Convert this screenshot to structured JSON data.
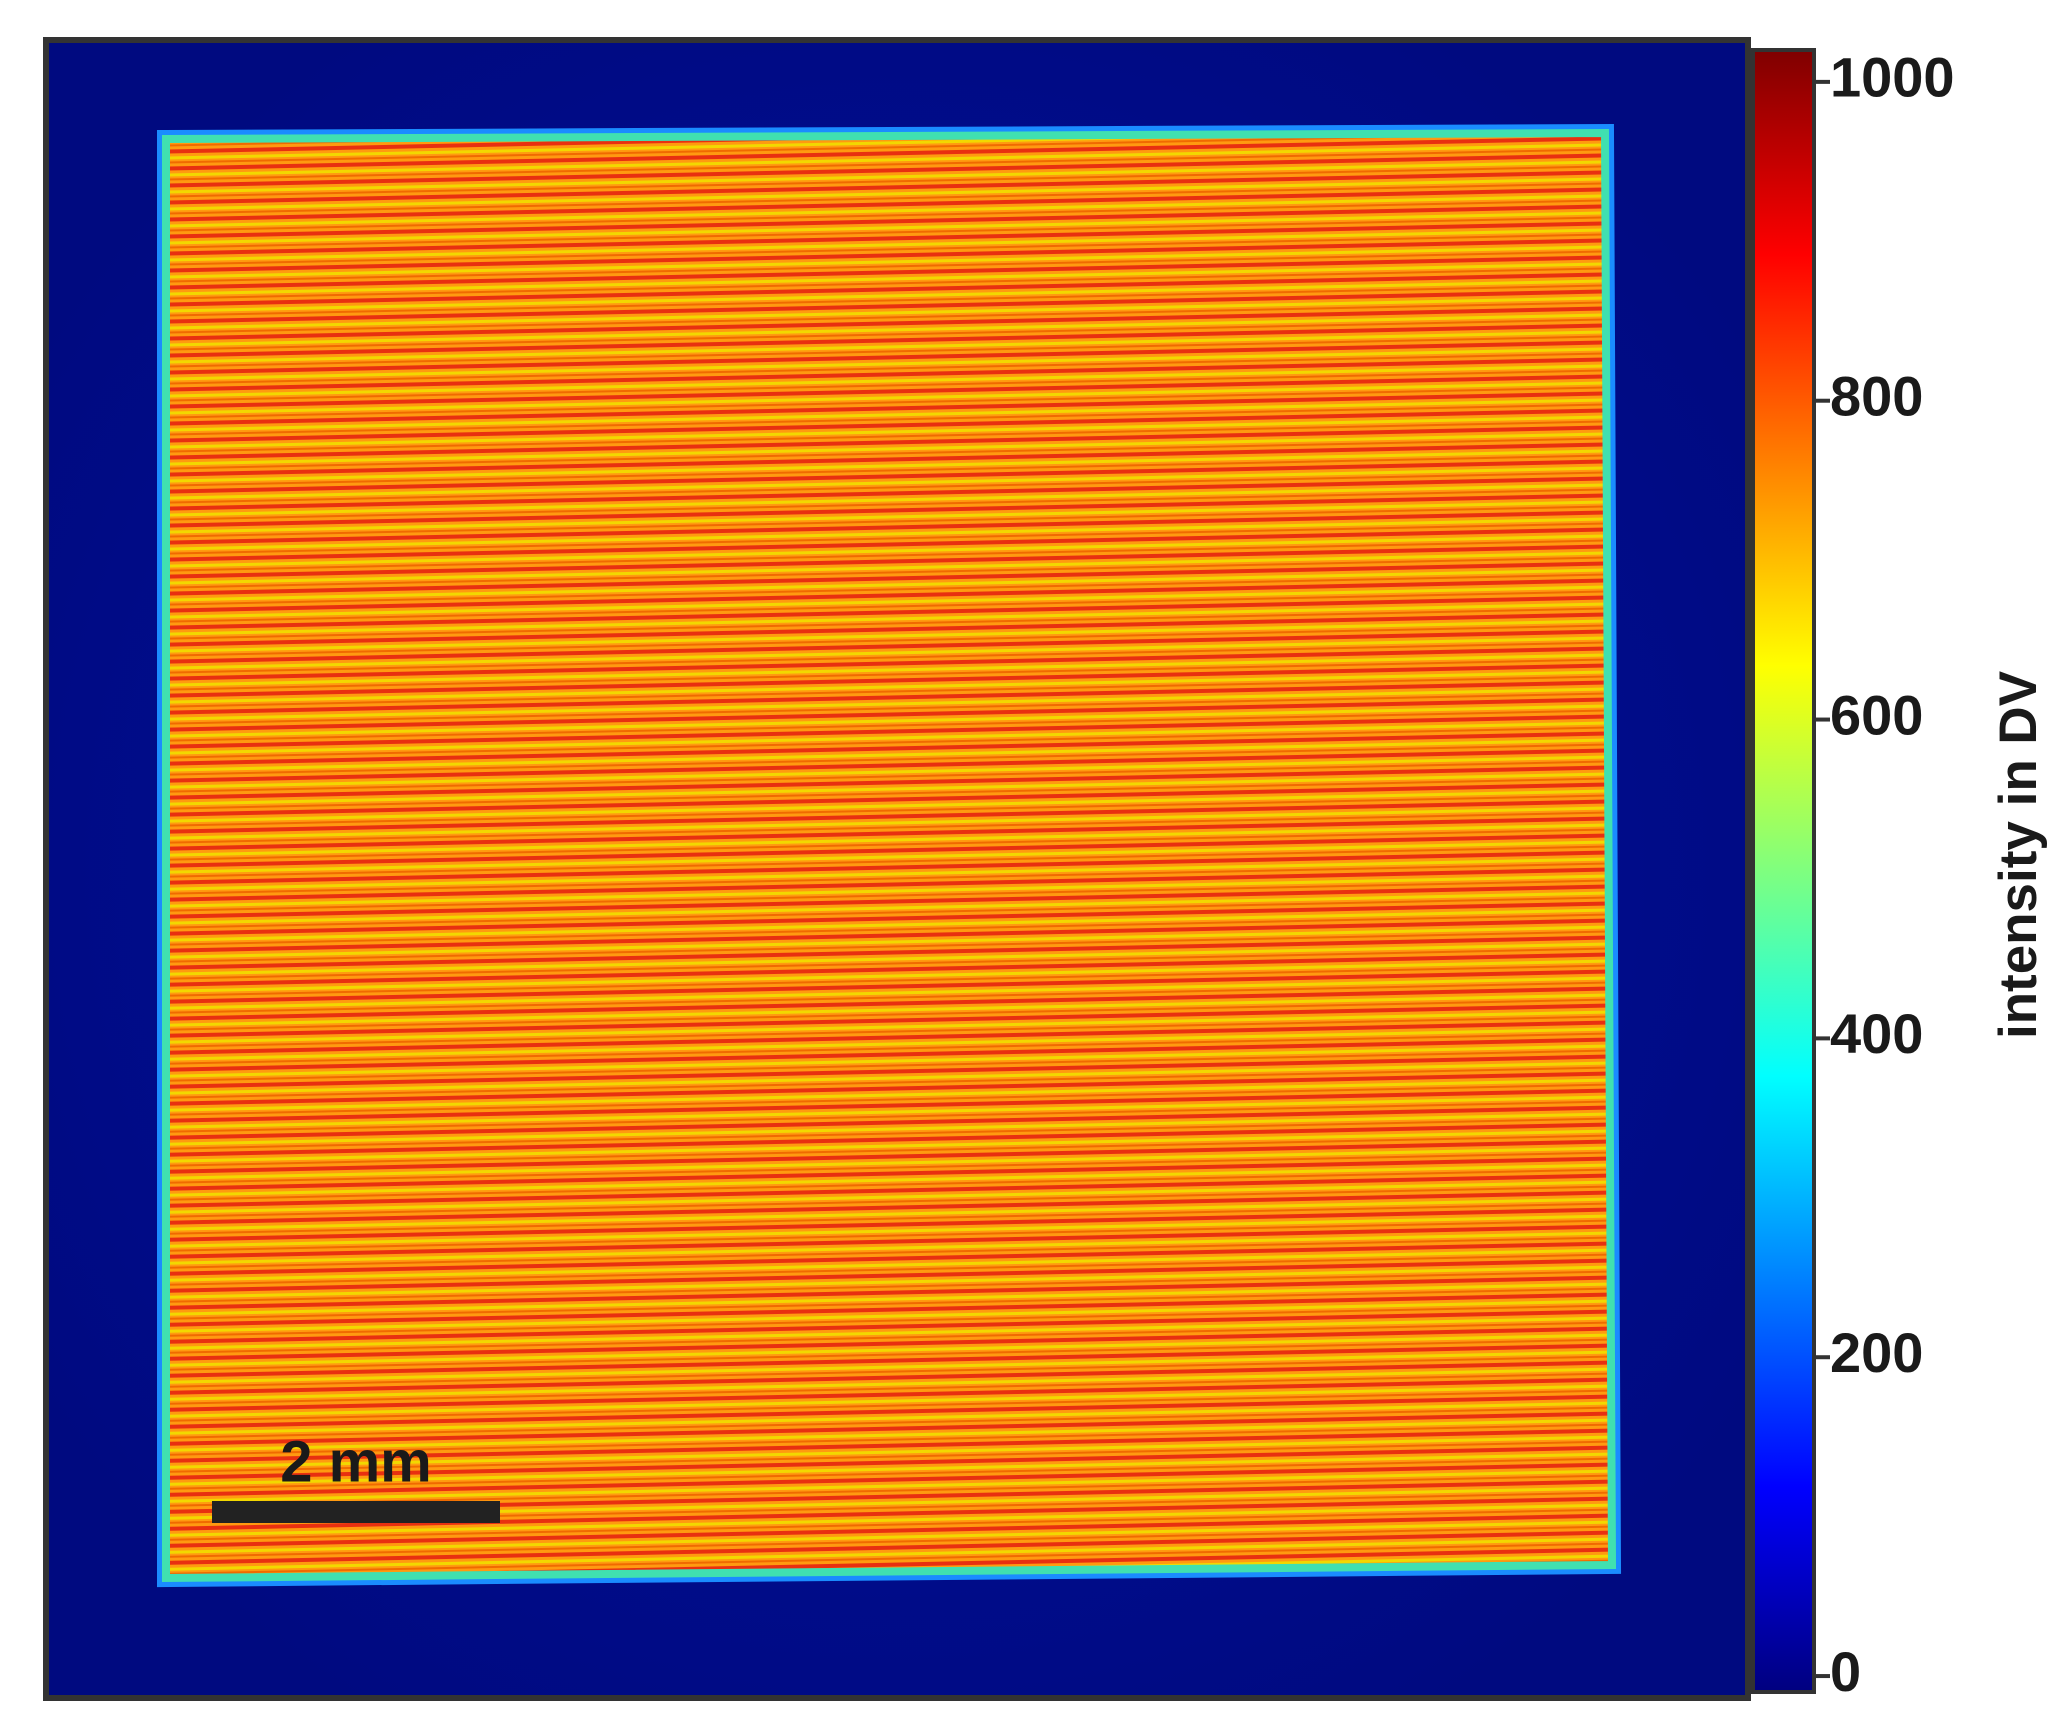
{
  "chart_data": {
    "type": "heatmap",
    "colormap": "jet",
    "zlim": [
      -10,
      1020
    ],
    "zticks": [
      0,
      200,
      400,
      600,
      800,
      1000
    ],
    "colorbar_label": "intensity in DV",
    "annotations": [
      "2 mm"
    ]
  }
}
